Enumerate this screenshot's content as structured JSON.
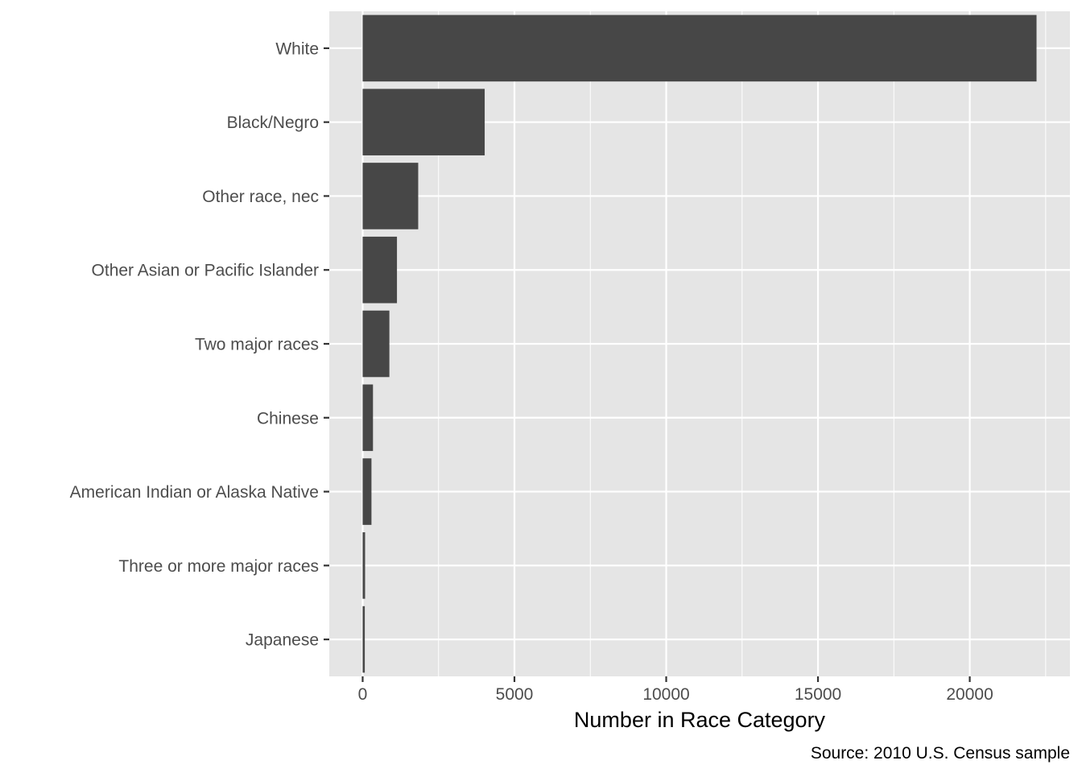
{
  "chart_data": {
    "type": "bar",
    "orientation": "horizontal",
    "categories": [
      "White",
      "Black/Negro",
      "Other race, nec",
      "Other Asian or Pacific Islander",
      "Two major races",
      "Chinese",
      "American Indian or Alaska Native",
      "Three or more major races",
      "Japanese"
    ],
    "values": [
      22200,
      4020,
      1830,
      1130,
      880,
      340,
      290,
      80,
      70
    ],
    "xlabel": "Number in Race Category",
    "ylabel": "",
    "xlim": [
      -1100,
      23300
    ],
    "xticks": [
      0,
      5000,
      10000,
      15000,
      20000
    ],
    "xtick_labels": [
      "0",
      "5000",
      "10000",
      "15000",
      "20000"
    ],
    "caption": "Source: 2010 U.S. Census sample",
    "grid": true,
    "legend": "none",
    "colors": {
      "bar": "#474747",
      "panel_background": "#e5e5e5",
      "grid": "#ffffff",
      "tick_text": "#4d4d4d"
    }
  }
}
